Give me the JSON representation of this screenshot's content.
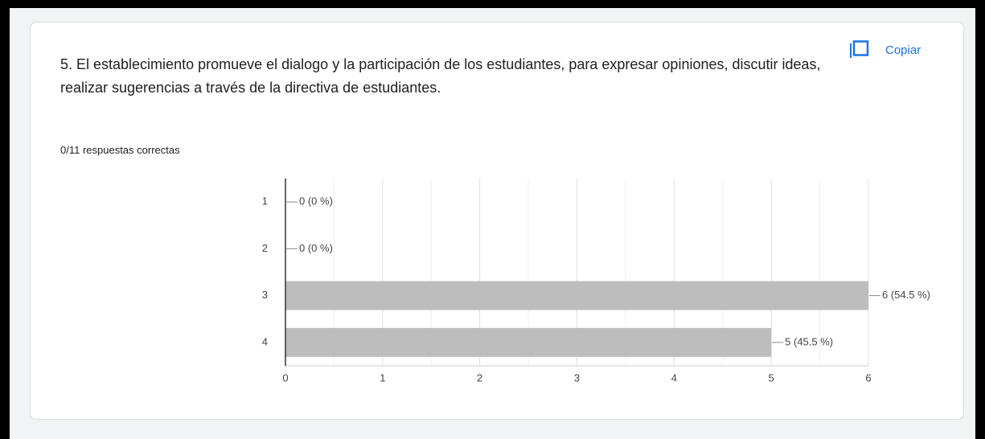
{
  "copy_button": "Copiar",
  "score": "0/11 respuestas correctas",
  "chart_data": {
    "type": "hbar",
    "title": "5. El establecimiento promueve el dialogo y la participación de los estudiantes, para expresar opiniones, discutir ideas, realizar sugerencias a través de la directiva de estudiantes.",
    "categories": [
      "1",
      "2",
      "3",
      "4"
    ],
    "values": [
      0,
      0,
      6,
      5
    ],
    "value_labels": [
      "0 (0 %)",
      "0 (0 %)",
      "6 (54.5 %)",
      "5 (45.5 %)"
    ],
    "color": "#bdbdbd",
    "xlim": [
      0,
      6
    ],
    "xticks": [
      0,
      1,
      2,
      3,
      4,
      5,
      6
    ],
    "grid": true
  }
}
